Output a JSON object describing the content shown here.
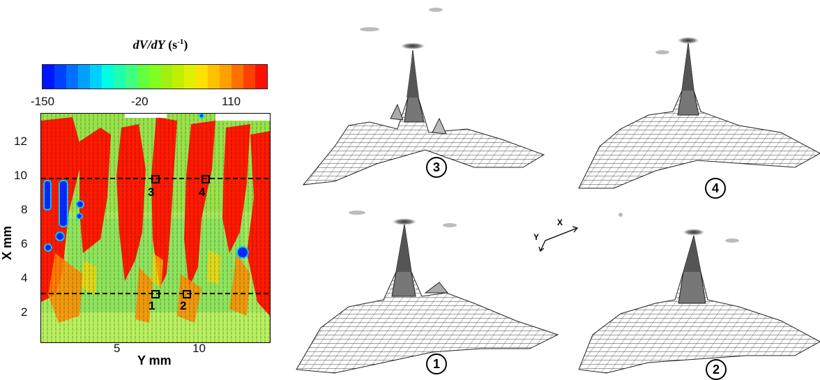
{
  "colorbar": {
    "title_main": "dV/dY",
    "title_unit_prefix": "(s",
    "title_unit_exp": "-1",
    "title_unit_suffix": ")",
    "tick_min": "-150",
    "tick_mid": "-20",
    "tick_max": "110",
    "colors": [
      "#0015ff",
      "#0040ff",
      "#0070ff",
      "#00a0ff",
      "#00d0ff",
      "#00ffe0",
      "#20ffb0",
      "#40ff80",
      "#60ff40",
      "#80ff20",
      "#a0f010",
      "#c0f000",
      "#e0f000",
      "#ffe000",
      "#ffc000",
      "#ffa000",
      "#ff7000",
      "#ff4000",
      "#ff1000"
    ]
  },
  "axes": {
    "x_title": "X mm",
    "y_title": "Y mm",
    "x_ticks": [
      "2",
      "4",
      "6",
      "8",
      "10",
      "12"
    ],
    "y_ticks": [
      "5",
      "10"
    ]
  },
  "points": {
    "p1": "1",
    "p2": "2",
    "p3": "3",
    "p4": "4"
  },
  "surfaces": {
    "s1": "1",
    "s2": "2",
    "s3": "3",
    "s4": "4"
  },
  "orientation": {
    "x_label": "X",
    "y_label": "Y"
  }
}
